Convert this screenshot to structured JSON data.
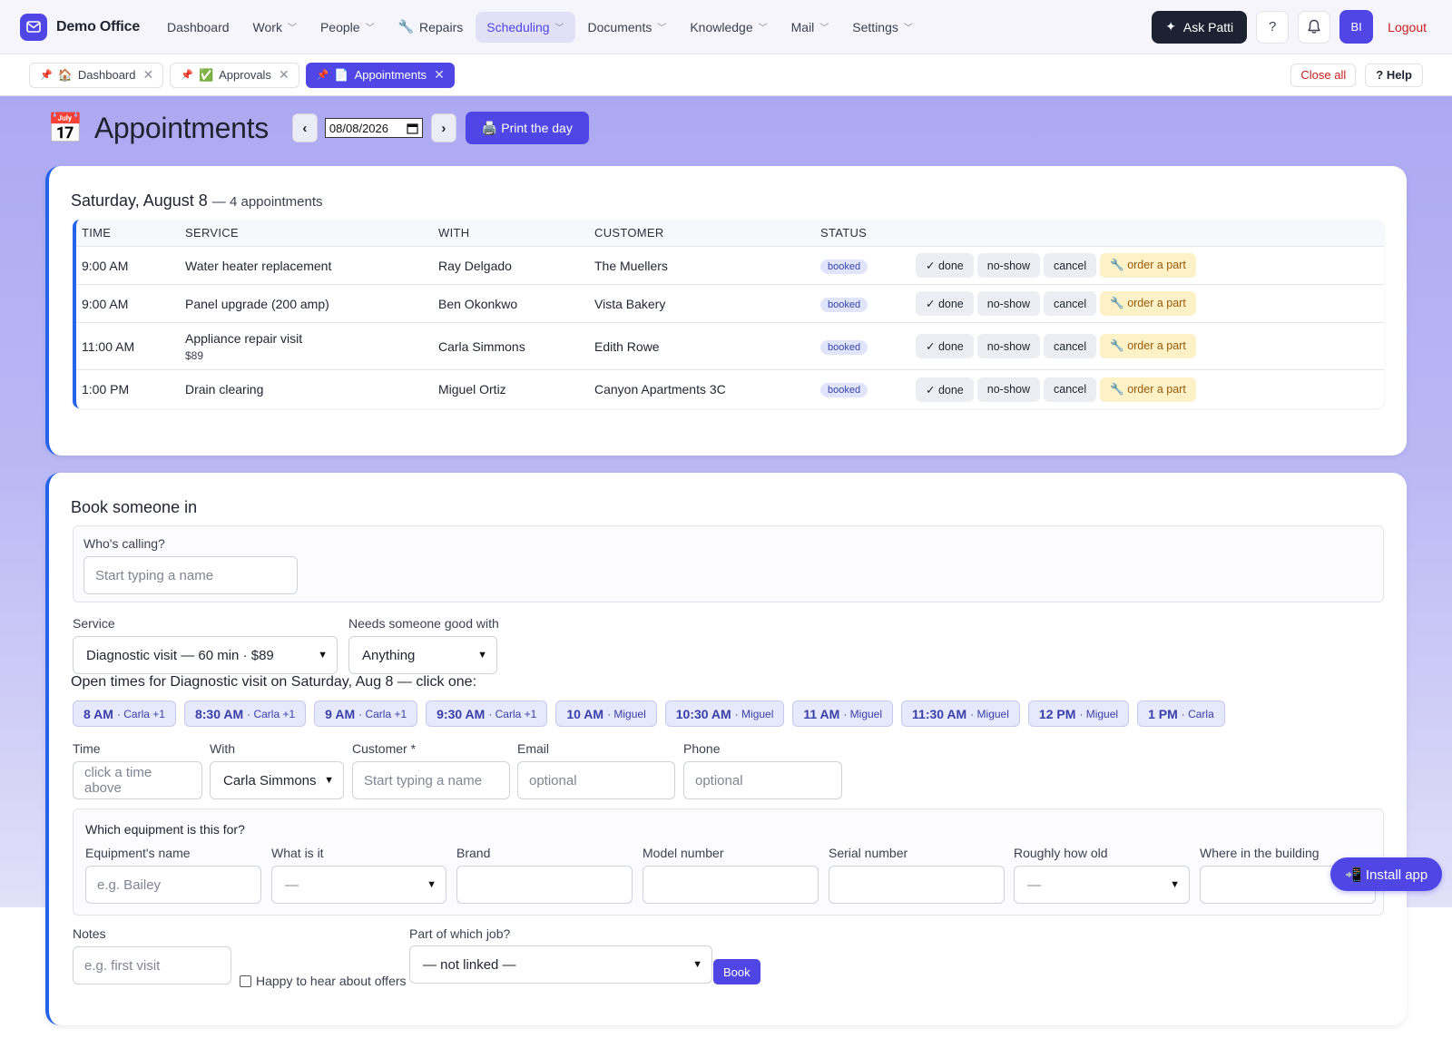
{
  "app": {
    "name": "Demo Office"
  },
  "nav": {
    "items": [
      {
        "label": "Dashboard",
        "has_menu": false
      },
      {
        "label": "Work",
        "has_menu": true
      },
      {
        "label": "People",
        "has_menu": true
      },
      {
        "label": "Repairs",
        "icon": "🔧",
        "has_menu": false
      },
      {
        "label": "Scheduling",
        "has_menu": true,
        "active": true
      },
      {
        "label": "Documents",
        "has_menu": true
      },
      {
        "label": "Knowledge",
        "has_menu": true
      },
      {
        "label": "Mail",
        "has_menu": true
      },
      {
        "label": "Settings",
        "has_menu": true
      }
    ],
    "ask_label": "Ask Patti",
    "help_label": "?",
    "avatar_initials": "BI",
    "logout_label": "Logout"
  },
  "tabs": {
    "items": [
      {
        "label": "Dashboard",
        "icon": "🏠",
        "active": false
      },
      {
        "label": "Approvals",
        "icon": "✅",
        "active": false
      },
      {
        "label": "Appointments",
        "icon": "📄",
        "active": true
      }
    ],
    "close_all_label": "Close all",
    "help_label": "? Help"
  },
  "page": {
    "title_icon": "📅",
    "title": "Appointments",
    "prev_label": "‹",
    "next_label": "›",
    "date_value": "08/08/2026",
    "print_label": "🖨️ Print the day"
  },
  "day": {
    "heading": "Saturday, August 8",
    "count_text": "— 4 appointments",
    "columns": [
      "TIME",
      "SERVICE",
      "WITH",
      "CUSTOMER",
      "STATUS"
    ],
    "actions": {
      "done": "✓ done",
      "noshow": "no-show",
      "cancel": "cancel",
      "part": "🔧 order a part"
    },
    "rows": [
      {
        "time": "9:00 AM",
        "service": "Water heater replacement",
        "price": "",
        "with": "Ray Delgado",
        "customer": "The Muellers",
        "status": "booked"
      },
      {
        "time": "9:00 AM",
        "service": "Panel upgrade (200 amp)",
        "price": "",
        "with": "Ben Okonkwo",
        "customer": "Vista Bakery",
        "status": "booked"
      },
      {
        "time": "11:00 AM",
        "service": "Appliance repair visit",
        "price": "$89",
        "with": "Carla Simmons",
        "customer": "Edith Rowe",
        "status": "booked"
      },
      {
        "time": "1:00 PM",
        "service": "Drain clearing",
        "price": "",
        "with": "Miguel Ortiz",
        "customer": "Canyon Apartments 3C",
        "status": "booked"
      }
    ]
  },
  "book": {
    "title": "Book someone in",
    "caller_label": "Who's calling?",
    "caller_placeholder": "Start typing a name",
    "service_label": "Service",
    "service_value": "Diagnostic visit — 60 min · $89",
    "skill_label": "Needs someone good with",
    "skill_value": "Anything",
    "open_times_text": "Open times for Diagnostic visit on Saturday, Aug 8 — click one:",
    "slots": [
      {
        "time": "8 AM",
        "with": "· Carla +1"
      },
      {
        "time": "8:30 AM",
        "with": "· Carla +1"
      },
      {
        "time": "9 AM",
        "with": "· Carla +1"
      },
      {
        "time": "9:30 AM",
        "with": "· Carla +1"
      },
      {
        "time": "10 AM",
        "with": "· Miguel"
      },
      {
        "time": "10:30 AM",
        "with": "· Miguel"
      },
      {
        "time": "11 AM",
        "with": "· Miguel"
      },
      {
        "time": "11:30 AM",
        "with": "· Miguel"
      },
      {
        "time": "12 PM",
        "with": "· Miguel"
      },
      {
        "time": "1 PM",
        "with": "· Carla"
      }
    ],
    "time_label": "Time",
    "time_placeholder": "click a time above",
    "with_label": "With",
    "with_value": "Carla Simmons",
    "customer_label": "Customer *",
    "customer_placeholder": "Start typing a name",
    "email_label": "Email",
    "email_placeholder": "optional",
    "phone_label": "Phone",
    "phone_placeholder": "optional",
    "equipment": {
      "title": "Which equipment is this for?",
      "name_label": "Equipment's name",
      "name_placeholder": "e.g. Bailey",
      "type_label": "What is it",
      "type_value": "—",
      "brand_label": "Brand",
      "model_label": "Model number",
      "serial_label": "Serial number",
      "age_label": "Roughly how old",
      "age_value": "—",
      "location_label": "Where in the building"
    },
    "notes_label": "Notes",
    "notes_placeholder": "e.g. first visit",
    "offers_label": "Happy to hear about offers",
    "job_label": "Part of which job?",
    "job_value": "— not linked —",
    "book_label": "Book"
  },
  "install_label": "📲 Install app"
}
